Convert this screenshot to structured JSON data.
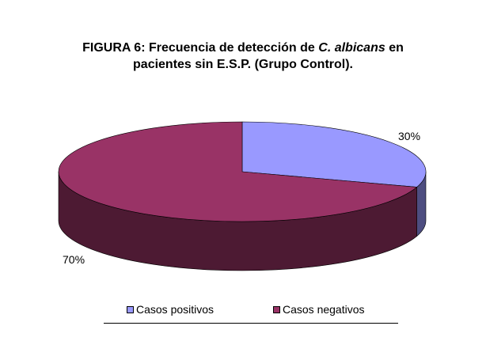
{
  "title": {
    "line1_prefix": "FIGURA 6: Frecuencia de detección de ",
    "line1_italic": "C. albicans",
    "line1_suffix": " en",
    "line2": "pacientes sin E.S.P. (Grupo Control)."
  },
  "chart_data": {
    "type": "pie",
    "style": "3d",
    "categories": [
      "Casos positivos",
      "Casos negativos"
    ],
    "values": [
      30,
      70
    ],
    "data_labels": [
      "30%",
      "70%"
    ],
    "colors": {
      "Casos positivos": {
        "top": "#9999ff",
        "side": "#4d4d80"
      },
      "Casos negativos": {
        "top": "#993366",
        "side": "#4d1a33"
      }
    },
    "legend_position": "bottom"
  }
}
